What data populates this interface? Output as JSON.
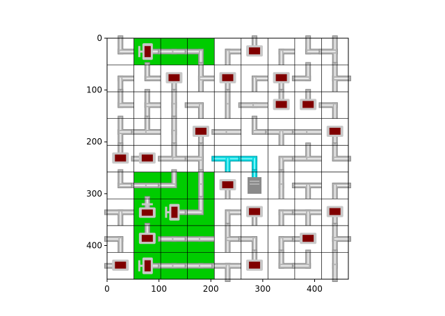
{
  "grid": {
    "rows": 9,
    "cols": 9,
    "colors": {
      "powered": "#00cc00",
      "empty": "#ffffff",
      "pipe": "#b4b4b4",
      "pipe_highlight": "#ececec",
      "pipe_shadow": "#8a8a8a",
      "water": "#00d8e0",
      "water_dark": "#009aa6",
      "monitor": "#800000",
      "monitor_frame": "#c8c8c8",
      "server": "#8a8a8a",
      "gridline": "#000000"
    },
    "cells": [
      [
        {
          "bg": "empty",
          "pipe": "elbow",
          "dirs": [
            "N",
            "E"
          ]
        },
        {
          "bg": "powered",
          "pipe": "end",
          "dirs": [
            "E"
          ],
          "item": "valve-red"
        },
        {
          "bg": "powered",
          "pipe": "straight",
          "dirs": [
            "W",
            "E"
          ]
        },
        {
          "bg": "powered",
          "pipe": "elbow",
          "dirs": [
            "W",
            "S"
          ]
        },
        {
          "bg": "empty",
          "pipe": "elbow",
          "dirs": [
            "E",
            "S"
          ]
        },
        {
          "bg": "empty",
          "pipe": "end",
          "dirs": [
            "N"
          ],
          "item": "monitor"
        },
        {
          "bg": "empty",
          "pipe": "elbow",
          "dirs": [
            "E",
            "S"
          ]
        },
        {
          "bg": "empty",
          "pipe": "elbow",
          "dirs": [
            "N",
            "E"
          ]
        },
        {
          "bg": "empty",
          "pipe": "tee",
          "dirs": [
            "N",
            "S",
            "W"
          ]
        }
      ],
      [
        {
          "bg": "empty",
          "pipe": "elbow",
          "dirs": [
            "E",
            "S"
          ]
        },
        {
          "bg": "empty",
          "pipe": "elbow",
          "dirs": [
            "N",
            "E"
          ]
        },
        {
          "bg": "empty",
          "pipe": "end",
          "dirs": [
            "S"
          ],
          "item": "monitor"
        },
        {
          "bg": "empty",
          "pipe": "tee",
          "dirs": [
            "N",
            "S",
            "E"
          ]
        },
        {
          "bg": "empty",
          "pipe": "end",
          "dirs": [
            "S"
          ],
          "item": "monitor"
        },
        {
          "bg": "empty",
          "pipe": "elbow",
          "dirs": [
            "E",
            "S"
          ]
        },
        {
          "bg": "empty",
          "pipe": "end",
          "dirs": [
            "S"
          ],
          "item": "monitor"
        },
        {
          "bg": "empty",
          "pipe": "elbow",
          "dirs": [
            "N",
            "W"
          ]
        },
        {
          "bg": "empty",
          "pipe": "tee",
          "dirs": [
            "N",
            "S",
            "E"
          ]
        }
      ],
      [
        {
          "bg": "empty",
          "pipe": "elbow",
          "dirs": [
            "N",
            "E"
          ]
        },
        {
          "bg": "empty",
          "pipe": "tee",
          "dirs": [
            "N",
            "S",
            "E"
          ]
        },
        {
          "bg": "empty",
          "pipe": "straight",
          "dirs": [
            "N",
            "S"
          ]
        },
        {
          "bg": "empty",
          "pipe": "elbow",
          "dirs": [
            "W",
            "S"
          ]
        },
        {
          "bg": "empty",
          "pipe": "straight",
          "dirs": [
            "N",
            "S"
          ]
        },
        {
          "bg": "empty",
          "pipe": "straight",
          "dirs": [
            "W",
            "E"
          ]
        },
        {
          "bg": "empty",
          "pipe": "end",
          "dirs": [
            "N"
          ],
          "item": "monitor"
        },
        {
          "bg": "empty",
          "pipe": "end",
          "dirs": [
            "N"
          ],
          "item": "monitor"
        },
        {
          "bg": "empty",
          "pipe": "elbow",
          "dirs": [
            "W",
            "S"
          ]
        }
      ],
      [
        {
          "bg": "empty",
          "pipe": "tee",
          "dirs": [
            "N",
            "S",
            "E"
          ]
        },
        {
          "bg": "empty",
          "pipe": "tee",
          "dirs": [
            "N",
            "W",
            "E"
          ]
        },
        {
          "bg": "empty",
          "pipe": "straight",
          "dirs": [
            "N",
            "S"
          ]
        },
        {
          "bg": "empty",
          "pipe": "end",
          "dirs": [
            "S"
          ],
          "item": "monitor"
        },
        {
          "bg": "empty",
          "pipe": "straight",
          "dirs": [
            "W",
            "E"
          ]
        },
        {
          "bg": "empty",
          "pipe": "elbow",
          "dirs": [
            "N",
            "E"
          ]
        },
        {
          "bg": "empty",
          "pipe": "tee",
          "dirs": [
            "W",
            "E",
            "S"
          ]
        },
        {
          "bg": "empty",
          "pipe": "straight",
          "dirs": [
            "W",
            "E"
          ]
        },
        {
          "bg": "empty",
          "pipe": "end",
          "dirs": [
            "S"
          ],
          "item": "monitor"
        }
      ],
      [
        {
          "bg": "empty",
          "pipe": "end",
          "dirs": [
            "N"
          ],
          "item": "monitor"
        },
        {
          "bg": "empty",
          "pipe": "end",
          "dirs": [
            "W"
          ],
          "item": "monitor"
        },
        {
          "bg": "empty",
          "pipe": "tee",
          "dirs": [
            "N",
            "W",
            "E"
          ]
        },
        {
          "bg": "empty",
          "pipe": "tee",
          "dirs": [
            "N",
            "S",
            "W"
          ]
        },
        {
          "bg": "water",
          "pipe": "tee",
          "dirs": [
            "W",
            "E",
            "S"
          ]
        },
        {
          "bg": "water",
          "pipe": "elbow",
          "dirs": [
            "W",
            "S"
          ]
        },
        {
          "bg": "empty",
          "pipe": "elbow",
          "dirs": [
            "E",
            "S"
          ]
        },
        {
          "bg": "empty",
          "pipe": "tee",
          "dirs": [
            "N",
            "W",
            "E"
          ]
        },
        {
          "bg": "empty",
          "pipe": "elbow",
          "dirs": [
            "N",
            "E"
          ]
        }
      ],
      [
        {
          "bg": "empty",
          "pipe": "elbow",
          "dirs": [
            "N",
            "E"
          ]
        },
        {
          "bg": "powered",
          "pipe": "straight",
          "dirs": [
            "W",
            "E"
          ]
        },
        {
          "bg": "powered",
          "pipe": "elbow",
          "dirs": [
            "N",
            "W"
          ]
        },
        {
          "bg": "powered",
          "pipe": "straight",
          "dirs": [
            "N",
            "S"
          ]
        },
        {
          "bg": "empty",
          "pipe": "end",
          "dirs": [
            "S"
          ],
          "item": "monitor"
        },
        {
          "bg": "water",
          "pipe": "end",
          "dirs": [
            "N"
          ],
          "item": "server"
        },
        {
          "bg": "empty",
          "pipe": "straight",
          "dirs": [
            "N",
            "S"
          ]
        },
        {
          "bg": "empty",
          "pipe": "tee",
          "dirs": [
            "W",
            "E",
            "S"
          ]
        },
        {
          "bg": "empty",
          "pipe": "elbow",
          "dirs": [
            "E",
            "S"
          ]
        }
      ],
      [
        {
          "bg": "empty",
          "pipe": "tee",
          "dirs": [
            "W",
            "E",
            "S"
          ]
        },
        {
          "bg": "powered",
          "pipe": "end",
          "dirs": [
            "N"
          ],
          "item": "valve-gray"
        },
        {
          "bg": "powered",
          "pipe": "end",
          "dirs": [
            "E"
          ],
          "item": "valve-red"
        },
        {
          "bg": "powered",
          "pipe": "elbow",
          "dirs": [
            "N",
            "W"
          ]
        },
        {
          "bg": "empty",
          "pipe": "elbow",
          "dirs": [
            "E",
            "S"
          ]
        },
        {
          "bg": "empty",
          "pipe": "end",
          "dirs": [
            "S"
          ],
          "item": "monitor"
        },
        {
          "bg": "empty",
          "pipe": "elbow",
          "dirs": [
            "E",
            "S"
          ]
        },
        {
          "bg": "empty",
          "pipe": "tee",
          "dirs": [
            "W",
            "E",
            "S"
          ]
        },
        {
          "bg": "empty",
          "pipe": "end",
          "dirs": [
            "S"
          ],
          "item": "monitor"
        }
      ],
      [
        {
          "bg": "empty",
          "pipe": "elbow",
          "dirs": [
            "W",
            "S"
          ]
        },
        {
          "bg": "powered",
          "pipe": "end",
          "dirs": [
            "N"
          ],
          "item": "monitor"
        },
        {
          "bg": "powered",
          "pipe": "straight",
          "dirs": [
            "W",
            "E"
          ]
        },
        {
          "bg": "powered",
          "pipe": "straight",
          "dirs": [
            "W",
            "E"
          ]
        },
        {
          "bg": "empty",
          "pipe": "tee",
          "dirs": [
            "N",
            "S",
            "E"
          ]
        },
        {
          "bg": "empty",
          "pipe": "elbow",
          "dirs": [
            "W",
            "S"
          ]
        },
        {
          "bg": "empty",
          "pipe": "elbow",
          "dirs": [
            "E",
            "S"
          ]
        },
        {
          "bg": "empty",
          "pipe": "end",
          "dirs": [
            "W"
          ],
          "item": "monitor"
        },
        {
          "bg": "empty",
          "pipe": "tee",
          "dirs": [
            "N",
            "S",
            "E"
          ]
        }
      ],
      [
        {
          "bg": "empty",
          "pipe": "end",
          "dirs": [
            "W"
          ],
          "item": "monitor"
        },
        {
          "bg": "powered",
          "pipe": "end",
          "dirs": [
            "E"
          ],
          "item": "valve-red"
        },
        {
          "bg": "powered",
          "pipe": "straight",
          "dirs": [
            "W",
            "E"
          ]
        },
        {
          "bg": "powered",
          "pipe": "straight",
          "dirs": [
            "W",
            "E"
          ]
        },
        {
          "bg": "empty",
          "pipe": "tee",
          "dirs": [
            "W",
            "E",
            "S"
          ]
        },
        {
          "bg": "empty",
          "pipe": "end",
          "dirs": [
            "N"
          ],
          "item": "monitor"
        },
        {
          "bg": "empty",
          "pipe": "elbow",
          "dirs": [
            "N",
            "E"
          ]
        },
        {
          "bg": "empty",
          "pipe": "elbow",
          "dirs": [
            "N",
            "W"
          ]
        },
        {
          "bg": "empty",
          "pipe": "straight",
          "dirs": [
            "N",
            "S"
          ]
        }
      ]
    ]
  },
  "axes": {
    "x_ticks": [
      {
        "value": 0,
        "label": "0"
      },
      {
        "value": 100,
        "label": "100"
      },
      {
        "value": 200,
        "label": "200"
      },
      {
        "value": 300,
        "label": "300"
      },
      {
        "value": 400,
        "label": "400"
      }
    ],
    "y_ticks": [
      {
        "value": 0,
        "label": "0"
      },
      {
        "value": 100,
        "label": "100"
      },
      {
        "value": 200,
        "label": "200"
      },
      {
        "value": 300,
        "label": "300"
      },
      {
        "value": 400,
        "label": "400"
      }
    ],
    "x_range": [
      0,
      465
    ],
    "y_range": [
      0,
      465
    ]
  }
}
